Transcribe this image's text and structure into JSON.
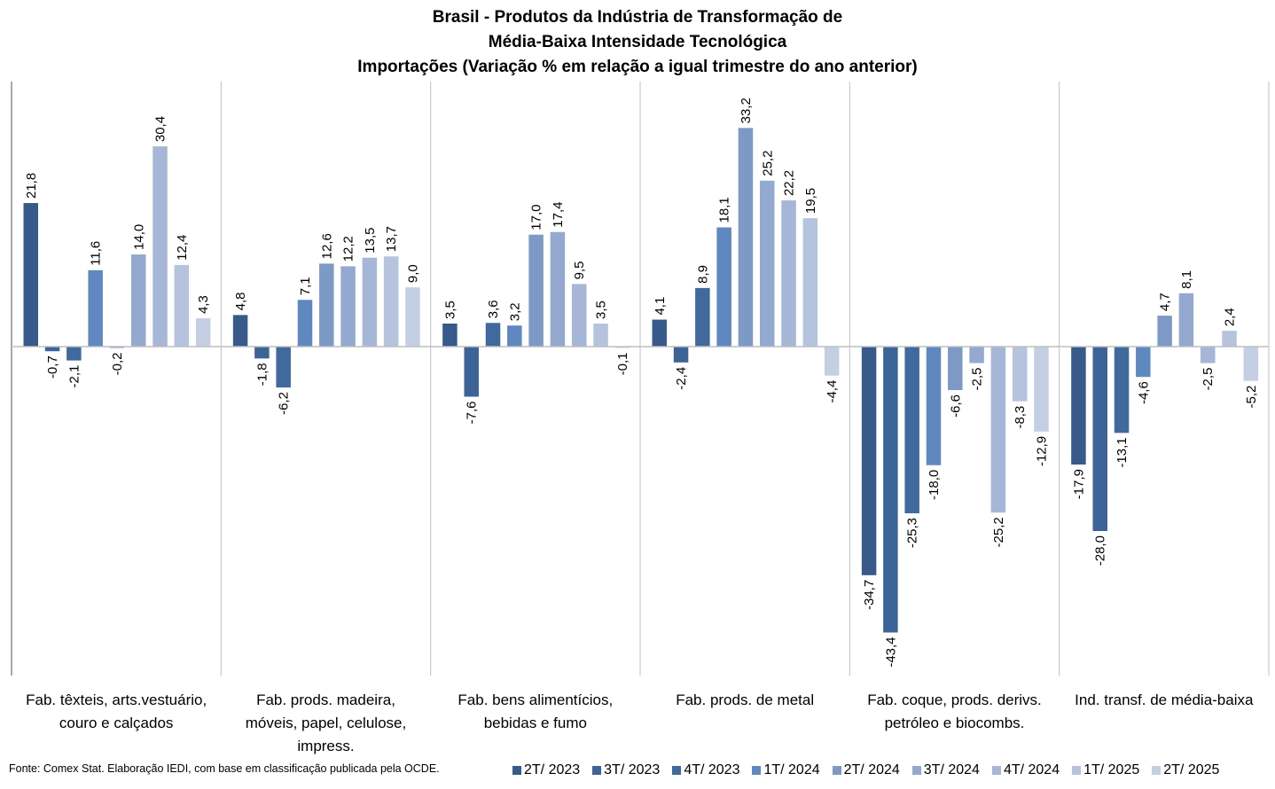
{
  "chart_data": {
    "type": "bar",
    "title": [
      "Brasil - Produtos da Indústria de Transformação de",
      "Média-Baixa Intensidade Tecnológica",
      "Importações (Variação % em relação a igual trimestre do ano anterior)"
    ],
    "xlabel": "",
    "ylabel": "",
    "ylim": [
      -45,
      40
    ],
    "grid": false,
    "legend_position": "bottom-right",
    "categories": [
      "Fab. têxteis, arts.vestuário, couro e calçados",
      "Fab. prods. madeira, móveis, papel, celulose, impress.",
      "Fab. bens alimentícios, bebidas e fumo",
      "Fab. prods. de metal",
      "Fab. coque, prods. derivs. petróleo e biocombs.",
      "Ind. transf. de média-baixa"
    ],
    "category_label_lines": [
      [
        "Fab. têxteis, arts.vestuário,",
        "couro e calçados"
      ],
      [
        "Fab. prods. madeira,",
        "móveis, papel, celulose,",
        "impress."
      ],
      [
        "Fab. bens alimentícios,",
        "bebidas e fumo"
      ],
      [
        "Fab. prods. de metal"
      ],
      [
        "Fab. coque, prods. derivs.",
        "petróleo e biocombs."
      ],
      [
        "Ind. transf. de média-baixa"
      ]
    ],
    "series": [
      {
        "name": "2T/ 2023",
        "color": "#375a8a",
        "values": [
          21.8,
          4.8,
          3.5,
          4.1,
          -34.7,
          -17.9
        ]
      },
      {
        "name": "3T/ 2023",
        "color": "#3c6496",
        "values": [
          -0.7,
          -1.8,
          -7.6,
          -2.4,
          -43.4,
          -28.0
        ]
      },
      {
        "name": "4T/ 2023",
        "color": "#406a9e",
        "values": [
          -2.1,
          -6.2,
          3.6,
          8.9,
          -25.3,
          -13.1
        ]
      },
      {
        "name": "1T/ 2024",
        "color": "#5f88c0",
        "values": [
          11.6,
          7.1,
          3.2,
          18.1,
          -18.0,
          -4.6
        ]
      },
      {
        "name": "2T/ 2024",
        "color": "#7d9ac6",
        "values": [
          -0.2,
          12.6,
          17.0,
          33.2,
          -6.6,
          4.7
        ]
      },
      {
        "name": "3T/ 2024",
        "color": "#94a9cf",
        "values": [
          14.0,
          12.2,
          17.4,
          25.2,
          -2.5,
          8.1
        ]
      },
      {
        "name": "4T/ 2024",
        "color": "#a5b6d6",
        "values": [
          30.4,
          13.5,
          9.5,
          22.2,
          -25.2,
          -2.5
        ]
      },
      {
        "name": "1T/ 2025",
        "color": "#b6c3df",
        "values": [
          12.4,
          13.7,
          3.5,
          19.5,
          -8.3,
          2.4
        ]
      },
      {
        "name": "2T/ 2025",
        "color": "#c4cfe3",
        "values": [
          4.3,
          9.0,
          -0.1,
          -4.4,
          -12.9,
          -5.2
        ]
      }
    ],
    "data_label_format": "decimal-comma-1"
  },
  "source_note": "Fonte: Comex Stat. Elaboração IEDI, com base em classificação publicada pela OCDE."
}
